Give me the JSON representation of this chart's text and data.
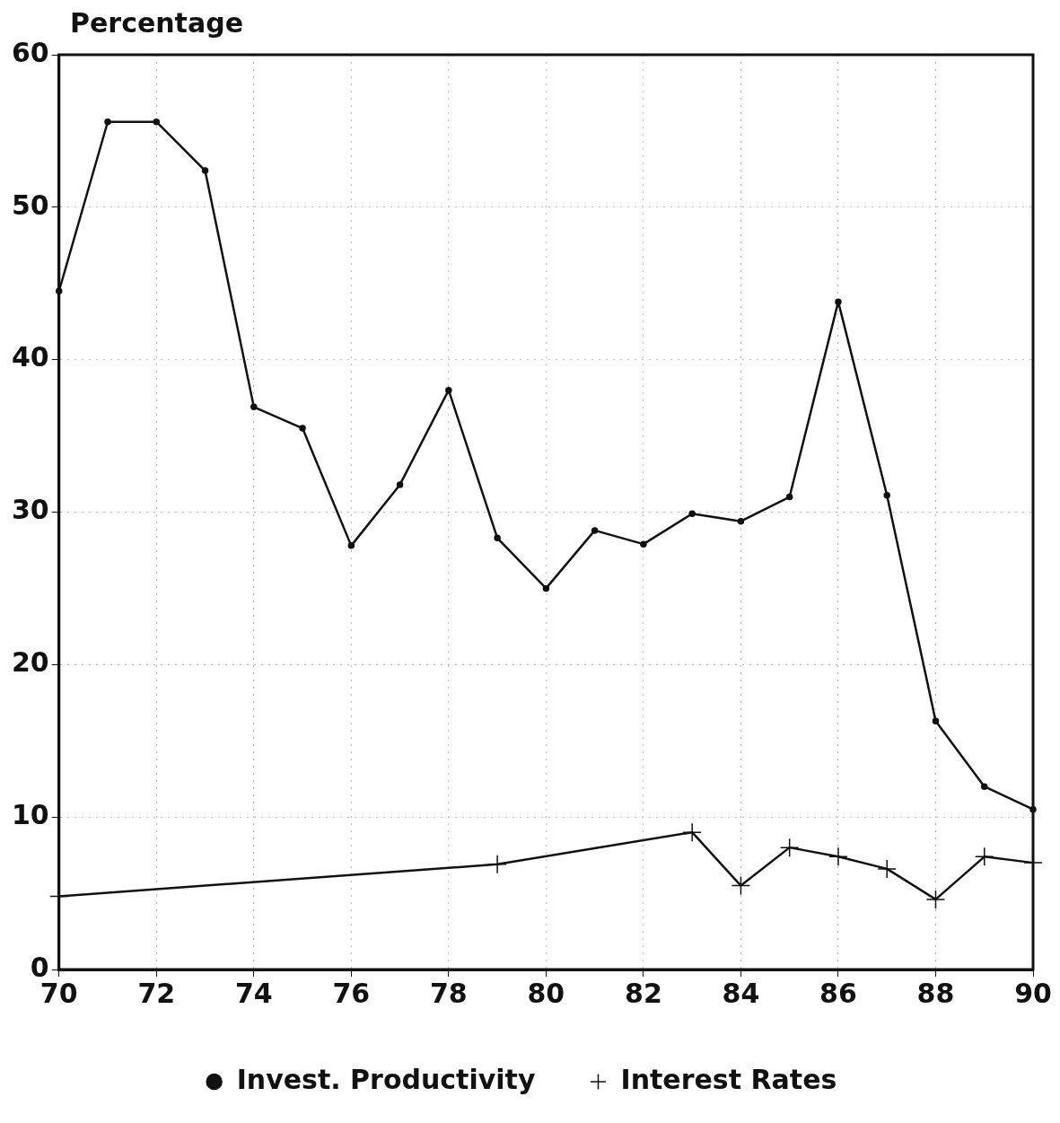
{
  "chart_data": {
    "type": "line",
    "ylabel": "Percentage",
    "xlim": [
      70,
      90
    ],
    "xticks": [
      70,
      72,
      74,
      76,
      78,
      80,
      82,
      84,
      86,
      88,
      90
    ],
    "ylim": [
      0,
      60
    ],
    "yticks": [
      0,
      10,
      20,
      30,
      40,
      50,
      60
    ],
    "grid": true,
    "legend": "bottom",
    "line_style": "solid",
    "series": [
      {
        "name": "Invest. Productivity",
        "color": "#111111",
        "marker": "circle",
        "x": [
          70,
          71,
          72,
          73,
          74,
          75,
          76,
          77,
          78,
          79,
          80,
          81,
          82,
          83,
          84,
          85,
          86,
          87,
          88,
          89,
          90
        ],
        "values": [
          44.5,
          55.6,
          55.6,
          52.4,
          36.9,
          35.5,
          27.8,
          31.8,
          38.0,
          28.3,
          25.0,
          28.8,
          27.9,
          29.9,
          29.4,
          31.0,
          43.8,
          31.1,
          16.3,
          12.0,
          10.5
        ]
      },
      {
        "name": "Interest Rates",
        "color": "#111111",
        "marker": "cross",
        "x": [
          70,
          79,
          83,
          84,
          85,
          86,
          87,
          88,
          89,
          90
        ],
        "values": [
          4.8,
          6.9,
          9.0,
          5.5,
          8.0,
          7.4,
          6.6,
          4.6,
          7.4,
          7.0
        ]
      }
    ]
  }
}
